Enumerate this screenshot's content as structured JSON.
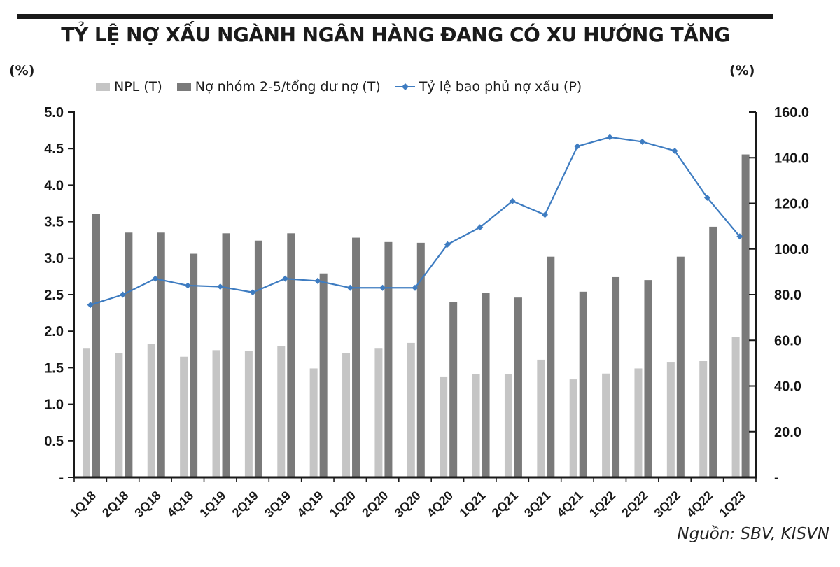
{
  "title": "TỶ LỆ NỢ XẤU NGÀNH NGÂN HÀNG ĐANG CÓ XU HƯỚNG TĂNG",
  "left_unit": "(%)",
  "right_unit": "(%)",
  "source": "Nguồn: SBV, KISVN",
  "legend": {
    "items": [
      {
        "label": "NPL (T)",
        "marker": "bar-swatch",
        "color": "#c5c5c5"
      },
      {
        "label": "Nợ nhóm 2-5/tổng dư nợ (T)",
        "marker": "bar-swatch",
        "color": "#7a7a7a"
      },
      {
        "label": "Tỷ lệ bao phủ nợ xấu (P)",
        "marker": "line-diamond",
        "color": "#3e7cc1"
      }
    ]
  },
  "chart_data": {
    "type": "combo-bar-line",
    "categories": [
      "1Q18",
      "2Q18",
      "3Q18",
      "4Q18",
      "1Q19",
      "2Q19",
      "3Q19",
      "4Q19",
      "1Q20",
      "2Q20",
      "3Q20",
      "4Q20",
      "1Q21",
      "2Q21",
      "3Q21",
      "4Q21",
      "1Q22",
      "2Q22",
      "3Q22",
      "4Q22",
      "1Q23"
    ],
    "series": [
      {
        "name": "NPL (T)",
        "type": "bar",
        "axis": "left",
        "color": "#c5c5c5",
        "values": [
          1.77,
          1.7,
          1.82,
          1.65,
          1.74,
          1.73,
          1.8,
          1.49,
          1.7,
          1.77,
          1.84,
          1.38,
          1.41,
          1.41,
          1.61,
          1.34,
          1.42,
          1.49,
          1.58,
          1.59,
          1.92
        ]
      },
      {
        "name": "Nợ nhóm 2-5/tổng dư nợ (T)",
        "type": "bar",
        "axis": "left",
        "color": "#7a7a7a",
        "values": [
          3.61,
          3.35,
          3.35,
          3.06,
          3.34,
          3.24,
          3.34,
          2.79,
          3.28,
          3.22,
          3.21,
          2.4,
          2.52,
          2.46,
          3.02,
          2.54,
          2.74,
          2.7,
          3.02,
          3.43,
          4.42
        ]
      },
      {
        "name": "Tỷ lệ bao phủ nợ xấu (P)",
        "type": "line",
        "axis": "right",
        "color": "#3e7cc1",
        "values": [
          75.5,
          80,
          87,
          84,
          83.5,
          81,
          87,
          86,
          83,
          83,
          83,
          102,
          109.5,
          121,
          115,
          145,
          149,
          147,
          143,
          122.5,
          105.5
        ]
      }
    ],
    "left_axis": {
      "unit": "(%)",
      "min": 0,
      "max": 5.0,
      "step": 0.5,
      "tick_labels_top_to_bottom": [
        "5.0",
        "4.5",
        "4.0",
        "3.5",
        "3.0",
        "2.5",
        "2.0",
        "1.5",
        "1.0",
        "0.5",
        "-"
      ]
    },
    "right_axis": {
      "unit": "(%)",
      "min": 0,
      "max": 160.0,
      "step": 20.0,
      "tick_labels_top_to_bottom": [
        "160.0",
        "140.0",
        "120.0",
        "100.0",
        "80.0",
        "60.0",
        "40.0",
        "20.0",
        "-"
      ]
    },
    "grid": false,
    "legend_position": "top",
    "x_label_rotation_deg": -45,
    "colors": {
      "axis": "#1a1a1a",
      "title_rule": "#1a1a1a"
    }
  }
}
